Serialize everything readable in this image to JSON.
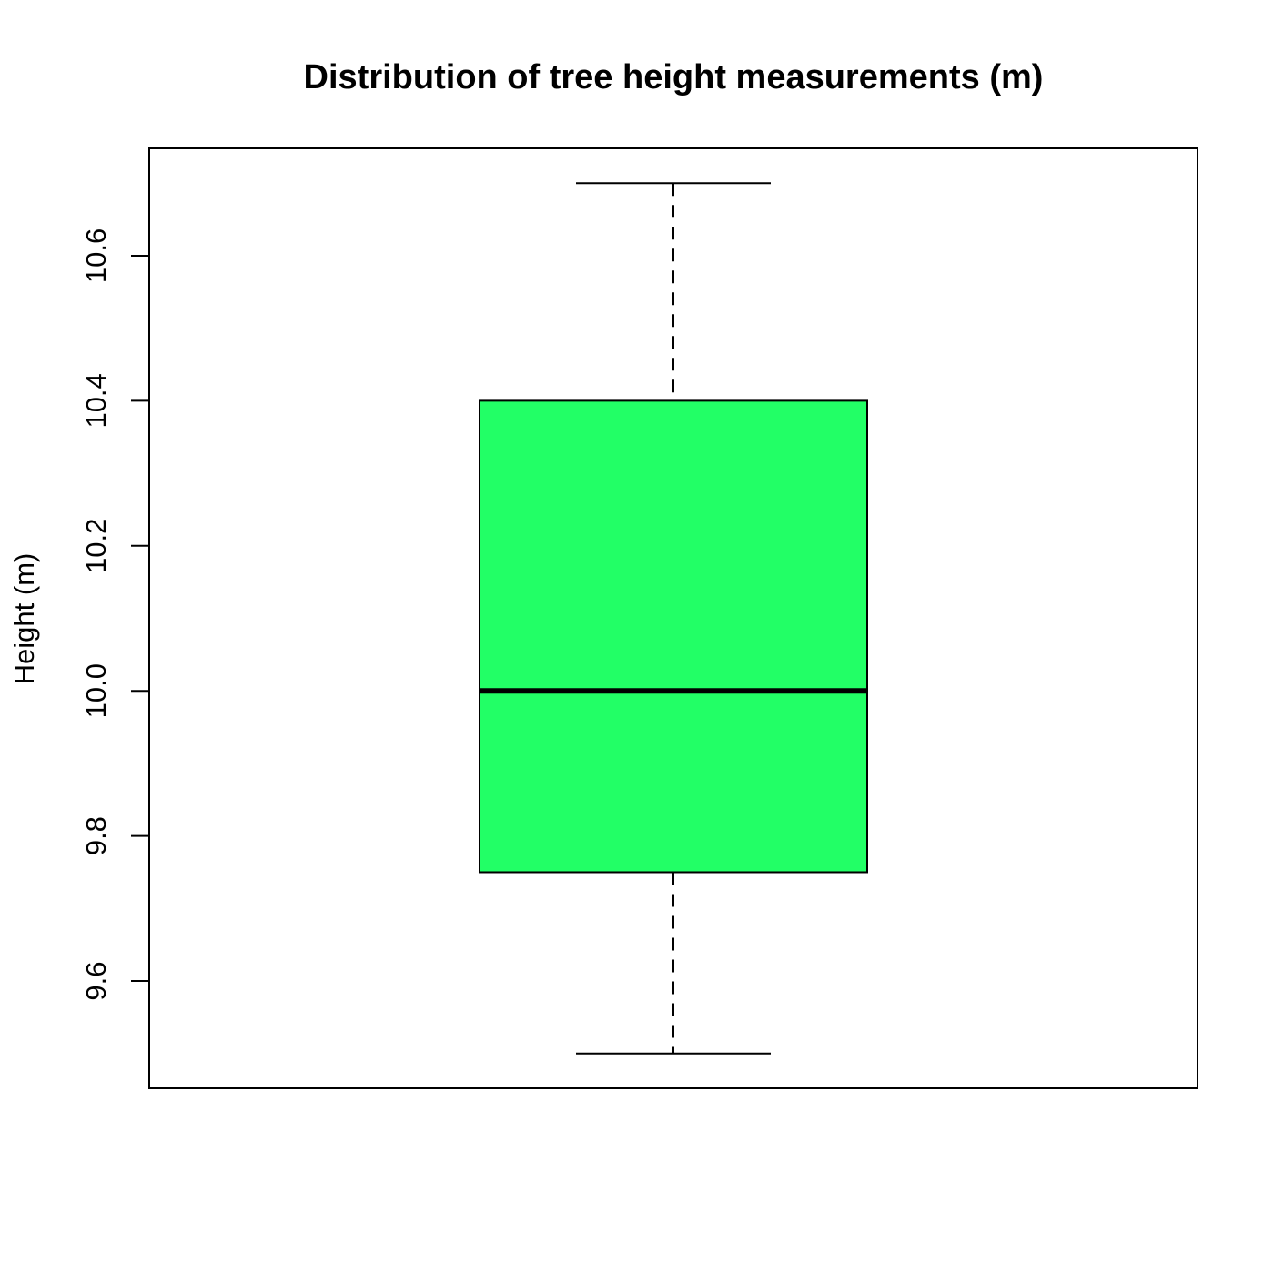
{
  "chart_data": {
    "type": "box",
    "title": "Distribution of tree height measurements (m)",
    "xlabel": "",
    "ylabel": "Height (m)",
    "ylim": [
      9.452,
      10.748
    ],
    "yticks": [
      9.6,
      9.8,
      10.0,
      10.2,
      10.4,
      10.6
    ],
    "ytick_labels": [
      "9.6",
      "9.8",
      "10.0",
      "10.2",
      "10.4",
      "10.6"
    ],
    "box": {
      "min": 9.5,
      "q1": 9.75,
      "median": 10.0,
      "q3": 10.4,
      "max": 10.7
    },
    "box_color": "#22ff66",
    "grid": false,
    "legend": "none"
  }
}
